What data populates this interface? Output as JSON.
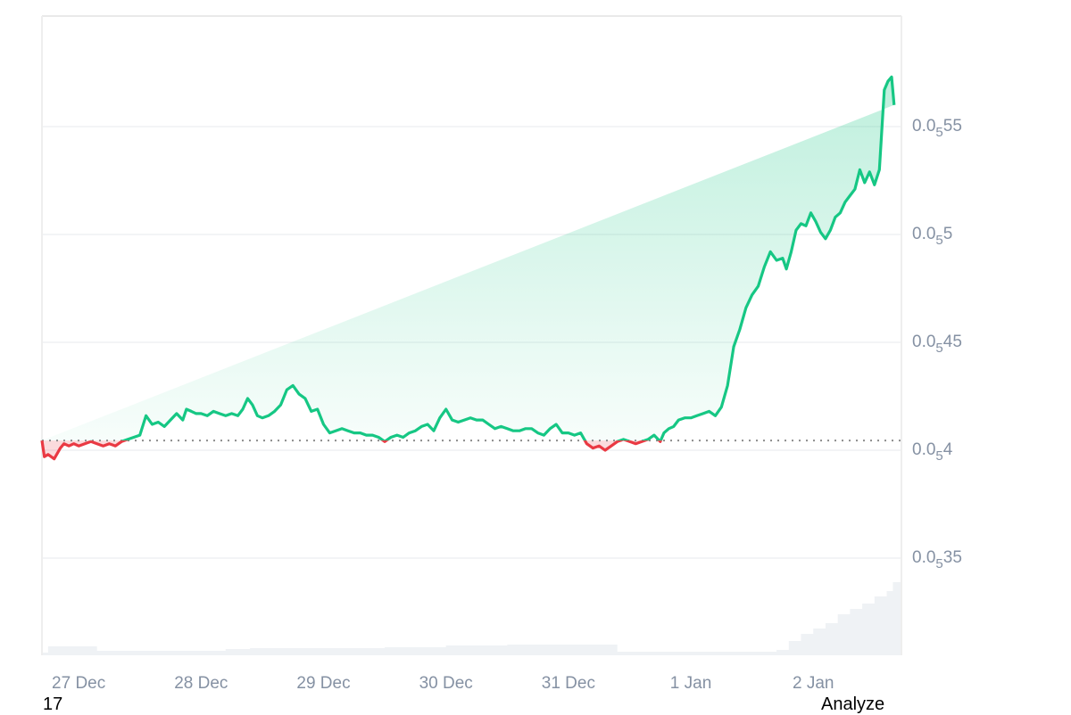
{
  "chart_data": {
    "type": "line",
    "title": "",
    "xlabel": "",
    "ylabel": "",
    "y_unit_note": "Prices shown in subscript-zero notation: 0.0₅X means 0.00000X",
    "yticks": [
      {
        "value": 0.55,
        "prefix": "0.0",
        "sub": "5",
        "suffix": "55"
      },
      {
        "value": 0.5,
        "prefix": "0.0",
        "sub": "5",
        "suffix": "5"
      },
      {
        "value": 0.45,
        "prefix": "0.0",
        "sub": "5",
        "suffix": "45"
      },
      {
        "value": 0.4,
        "prefix": "0.0",
        "sub": "5",
        "suffix": "4"
      },
      {
        "value": 0.35,
        "prefix": "0.0",
        "sub": "5",
        "suffix": "35"
      }
    ],
    "ylim": [
      0.305,
      0.602
    ],
    "baseline": 0.4045,
    "xticks": [
      "27 Dec",
      "28 Dec",
      "29 Dec",
      "30 Dec",
      "31 Dec",
      "1 Jan",
      "2 Jan"
    ],
    "xrange_days": [
      26.7,
      33.72
    ],
    "grid": true,
    "legend": "none",
    "colors": {
      "up": "#16c784",
      "down": "#ea3943",
      "grid": "#eff1f3",
      "axis_text": "#8591a3",
      "volume": "#eff2f5",
      "baseline": "#8c8c8c"
    },
    "series": [
      {
        "name": "price",
        "x_days": [
          26.7,
          26.72,
          26.75,
          26.8,
          26.85,
          26.88,
          26.92,
          26.96,
          27.0,
          27.05,
          27.1,
          27.15,
          27.2,
          27.25,
          27.3,
          27.35,
          27.4,
          27.45,
          27.5,
          27.55,
          27.6,
          27.65,
          27.7,
          27.75,
          27.8,
          27.85,
          27.88,
          27.92,
          27.96,
          28.0,
          28.05,
          28.1,
          28.15,
          28.2,
          28.25,
          28.3,
          28.34,
          28.38,
          28.42,
          28.46,
          28.5,
          28.55,
          28.6,
          28.65,
          28.7,
          28.75,
          28.8,
          28.85,
          28.9,
          28.95,
          29.0,
          29.05,
          29.1,
          29.15,
          29.2,
          29.25,
          29.3,
          29.35,
          29.4,
          29.45,
          29.5,
          29.55,
          29.6,
          29.65,
          29.7,
          29.75,
          29.8,
          29.85,
          29.9,
          29.95,
          30.0,
          30.05,
          30.1,
          30.15,
          30.2,
          30.25,
          30.3,
          30.35,
          30.4,
          30.45,
          30.5,
          30.55,
          30.6,
          30.65,
          30.7,
          30.75,
          30.8,
          30.85,
          30.9,
          30.95,
          31.0,
          31.05,
          31.1,
          31.15,
          31.2,
          31.25,
          31.3,
          31.35,
          31.4,
          31.45,
          31.5,
          31.55,
          31.6,
          31.65,
          31.7,
          31.75,
          31.78,
          31.82,
          31.86,
          31.9,
          31.95,
          32.0,
          32.05,
          32.1,
          32.15,
          32.2,
          32.25,
          32.3,
          32.35,
          32.4,
          32.45,
          32.5,
          32.55,
          32.6,
          32.65,
          32.7,
          32.75,
          32.78,
          32.82,
          32.86,
          32.9,
          32.94,
          32.98,
          33.02,
          33.06,
          33.1,
          33.14,
          33.18,
          33.22,
          33.26,
          33.3,
          33.34,
          33.38,
          33.42,
          33.46,
          33.5,
          33.54,
          33.58,
          33.61,
          33.64,
          33.66,
          33.68,
          33.7,
          33.72
        ],
        "values": [
          0.4045,
          0.397,
          0.398,
          0.396,
          0.401,
          0.403,
          0.402,
          0.403,
          0.402,
          0.403,
          0.404,
          0.403,
          0.402,
          0.403,
          0.402,
          0.404,
          0.405,
          0.406,
          0.407,
          0.416,
          0.412,
          0.413,
          0.411,
          0.414,
          0.417,
          0.414,
          0.419,
          0.418,
          0.417,
          0.417,
          0.416,
          0.418,
          0.417,
          0.416,
          0.417,
          0.416,
          0.419,
          0.424,
          0.421,
          0.416,
          0.415,
          0.416,
          0.418,
          0.421,
          0.428,
          0.43,
          0.426,
          0.424,
          0.418,
          0.419,
          0.412,
          0.408,
          0.409,
          0.41,
          0.409,
          0.408,
          0.408,
          0.407,
          0.407,
          0.406,
          0.404,
          0.406,
          0.407,
          0.406,
          0.408,
          0.409,
          0.411,
          0.412,
          0.409,
          0.415,
          0.419,
          0.414,
          0.413,
          0.414,
          0.415,
          0.414,
          0.414,
          0.412,
          0.41,
          0.411,
          0.41,
          0.409,
          0.409,
          0.41,
          0.41,
          0.408,
          0.407,
          0.41,
          0.412,
          0.408,
          0.408,
          0.407,
          0.408,
          0.403,
          0.401,
          0.402,
          0.4,
          0.402,
          0.404,
          0.405,
          0.404,
          0.403,
          0.404,
          0.405,
          0.407,
          0.404,
          0.408,
          0.41,
          0.411,
          0.414,
          0.415,
          0.415,
          0.416,
          0.417,
          0.418,
          0.416,
          0.42,
          0.43,
          0.448,
          0.456,
          0.466,
          0.472,
          0.476,
          0.485,
          0.492,
          0.488,
          0.489,
          0.484,
          0.492,
          0.502,
          0.505,
          0.504,
          0.51,
          0.506,
          0.501,
          0.498,
          0.502,
          0.508,
          0.51,
          0.515,
          0.518,
          0.521,
          0.53,
          0.524,
          0.529,
          0.523,
          0.53,
          0.567,
          0.571,
          0.573,
          0.56
        ]
      },
      {
        "name": "volume",
        "x_days": [
          26.7,
          26.75,
          27.0,
          27.15,
          27.4,
          27.6,
          27.8,
          28.2,
          28.4,
          28.8,
          29.2,
          29.5,
          29.8,
          30.0,
          30.1,
          30.5,
          31.0,
          31.4,
          31.6,
          31.8,
          32.0,
          32.3,
          32.6,
          32.7,
          32.8,
          32.9,
          33.0,
          33.1,
          33.2,
          33.3,
          33.4,
          33.5,
          33.6,
          33.65,
          33.72
        ],
        "values": [
          0.3,
          1.0,
          1.0,
          0.5,
          0.5,
          0.5,
          0.5,
          0.7,
          0.8,
          0.8,
          0.8,
          0.9,
          0.9,
          1.1,
          1.1,
          1.2,
          1.2,
          0.4,
          0.4,
          0.4,
          0.4,
          0.4,
          0.4,
          0.6,
          1.6,
          2.4,
          3.0,
          3.6,
          4.6,
          5.2,
          5.8,
          6.6,
          7.2,
          8.2,
          10.0
        ]
      }
    ]
  },
  "footer": {
    "left_text": "17",
    "right_text": "Analyze"
  }
}
